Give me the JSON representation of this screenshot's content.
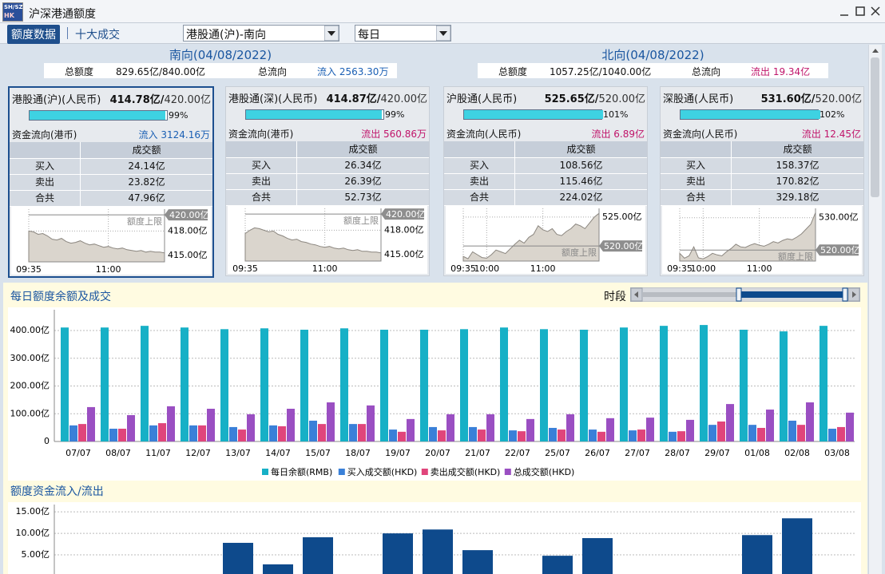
{
  "window": {
    "title": "沪深港通额度",
    "icon_top": "SH/SZ",
    "icon_bottom": "HK"
  },
  "tabs": [
    "额度数据",
    "十大成交"
  ],
  "selects": [
    "港股通(沪)-南向",
    "每日"
  ],
  "directions": [
    {
      "heading": "南向(04/08/2022)",
      "total_label": "总额度",
      "total": "829.65亿/840.00亿",
      "flow_label": "总流向",
      "flow": "流入 2563.30万",
      "flow_color": "#1a5fb4"
    },
    {
      "heading": "北向(04/08/2022)",
      "total_label": "总额度",
      "total": "1057.25亿/1040.00亿",
      "flow_label": "总流向",
      "flow": "流出 19.34亿",
      "flow_color": "#c0146a"
    }
  ],
  "cards": [
    {
      "name": "港股通(沪)(人民币)",
      "balance": "414.78亿/",
      "quota": "420.00亿",
      "pct": 99,
      "pct_label": "99%",
      "flow_label": "资金流向(港币)",
      "flow": "流入 3124.16万",
      "flow_color": "#1a5fb4",
      "col_header": "成交额",
      "rows": [
        [
          "买入",
          "24.14亿"
        ],
        [
          "卖出",
          "23.82亿"
        ],
        [
          "合共",
          "47.96亿"
        ]
      ],
      "chart": {
        "type": "area",
        "values": [
          418.0,
          417.9,
          417.6,
          417.7,
          417.4,
          417.0,
          416.9,
          417.1,
          416.7,
          416.5,
          416.6,
          416.8,
          416.5,
          416.3,
          416.4,
          416.2,
          416.0,
          416.1,
          415.9,
          415.8,
          415.9,
          415.7,
          415.6,
          415.5,
          415.6,
          415.4,
          415.5,
          415.4,
          415.4,
          415.3
        ],
        "ylim": [
          414.2,
          420.7
        ],
        "yticks": [
          {
            "value": 418,
            "label": "418.00亿"
          },
          {
            "value": 415,
            "label": "415.00亿"
          }
        ],
        "xticks": [
          {
            "value": 0,
            "label": "09:35"
          },
          {
            "value": 17,
            "label": "11:00"
          }
        ],
        "limit": {
          "value": 420,
          "label": "420.00亿"
        },
        "limit_text": "额度上限"
      }
    },
    {
      "name": "港股通(深)(人民币)",
      "balance": "414.87亿/",
      "quota": "420.00亿",
      "pct": 99,
      "pct_label": "99%",
      "flow_label": "资金流向(港币)",
      "flow": "流出 560.86万",
      "flow_color": "#c0146a",
      "col_header": "成交额",
      "rows": [
        [
          "买入",
          "26.34亿"
        ],
        [
          "卖出",
          "26.39亿"
        ],
        [
          "合共",
          "52.73亿"
        ]
      ],
      "chart": {
        "type": "area",
        "values": [
          417.6,
          418.0,
          418.3,
          418.2,
          418.0,
          417.8,
          417.9,
          417.5,
          417.3,
          417.0,
          416.8,
          416.9,
          416.6,
          416.5,
          416.3,
          416.2,
          416.0,
          415.9,
          416.0,
          415.8,
          415.7,
          415.8,
          415.6,
          415.5,
          415.6,
          415.4,
          415.4,
          415.3,
          415.3,
          415.2
        ],
        "ylim": [
          414.2,
          420.7
        ],
        "yticks": [
          {
            "value": 418,
            "label": "418.00亿"
          },
          {
            "value": 415,
            "label": "415.00亿"
          }
        ],
        "xticks": [
          {
            "value": 0,
            "label": "09:35"
          },
          {
            "value": 17,
            "label": "11:00"
          }
        ],
        "limit": {
          "value": 420,
          "label": "420.00亿"
        },
        "limit_text": "额度上限"
      }
    },
    {
      "name": "沪股通(人民币)",
      "balance": "525.65亿/",
      "quota": "520.00亿",
      "pct": 101,
      "pct_label": "101%",
      "flow_label": "资金流向(人民币)",
      "flow": "流出 6.89亿",
      "flow_color": "#c0146a",
      "col_header": "成交额",
      "rows": [
        [
          "买入",
          "108.56亿"
        ],
        [
          "卖出",
          "115.46亿"
        ],
        [
          "合共",
          "224.02亿"
        ]
      ],
      "chart": {
        "type": "area",
        "values": [
          518.2,
          517.8,
          519.0,
          518.5,
          518.0,
          517.9,
          518.5,
          519.3,
          519.0,
          518.7,
          519.5,
          520.3,
          521.0,
          520.5,
          521.5,
          522.0,
          523.5,
          522.8,
          522.5,
          523.0,
          522.0,
          521.8,
          522.5,
          523.0,
          523.8,
          523.5,
          523.0,
          524.0,
          525.0,
          525.65
        ],
        "ylim": [
          517.4,
          526.5
        ],
        "yticks": [
          {
            "value": 525,
            "label": "525.00亿"
          }
        ],
        "xticks": [
          {
            "value": 0,
            "label": "09:35"
          },
          {
            "value": 5,
            "label": "10:00"
          },
          {
            "value": 17,
            "label": "11:00"
          }
        ],
        "limit": {
          "value": 520,
          "label": "520.00亿"
        },
        "limit_text": "额度上限"
      }
    },
    {
      "name": "深股通(人民币)",
      "balance": "531.60亿/",
      "quota": "520.00亿",
      "pct": 102,
      "pct_label": "102%",
      "flow_label": "资金流向(人民币)",
      "flow": "流出 12.45亿",
      "flow_color": "#c0146a",
      "col_header": "成交额",
      "rows": [
        [
          "买入",
          "158.37亿"
        ],
        [
          "卖出",
          "170.82亿"
        ],
        [
          "合共",
          "329.18亿"
        ]
      ],
      "chart": {
        "type": "area",
        "values": [
          519.0,
          517.5,
          518.2,
          521.0,
          517.6,
          517.3,
          518.0,
          519.0,
          518.5,
          518.2,
          519.5,
          520.5,
          521.8,
          521.0,
          520.8,
          521.5,
          522.0,
          521.5,
          521.2,
          521.8,
          522.6,
          522.2,
          523.0,
          523.5,
          523.2,
          524.0,
          525.0,
          526.5,
          528.0,
          531.6
        ],
        "ylim": [
          516.6,
          532.9
        ],
        "yticks": [
          {
            "value": 530,
            "label": "530.00亿"
          }
        ],
        "xticks": [
          {
            "value": 0,
            "label": "09:35"
          },
          {
            "value": 5,
            "label": "10:00"
          },
          {
            "value": 17,
            "label": "11:00"
          }
        ],
        "limit": {
          "value": 520,
          "label": "520.00亿"
        },
        "limit_text": "额度上限"
      }
    }
  ],
  "sections": [
    {
      "title": "每日额度余额及成交",
      "range_label": "时段"
    },
    {
      "title": "额度资金流入/流出"
    }
  ],
  "daily_chart": {
    "type": "bar",
    "categories": [
      "07/07",
      "08/07",
      "11/07",
      "12/07",
      "13/07",
      "14/07",
      "15/07",
      "18/07",
      "19/07",
      "20/07",
      "21/07",
      "22/07",
      "25/07",
      "26/07",
      "27/07",
      "28/07",
      "29/07",
      "01/08",
      "02/08",
      "03/08"
    ],
    "series": [
      {
        "name": "每日余额(RMB)",
        "color": "#17b0c6",
        "values": [
          411,
          411,
          417,
          411,
          405,
          408,
          403,
          408,
          403,
          403,
          405,
          411,
          405,
          403,
          411,
          417,
          420,
          403,
          397,
          417
        ]
      },
      {
        "name": "买入成交额(HKD)",
        "color": "#3a80d8",
        "values": [
          58,
          46,
          58,
          58,
          52,
          58,
          75,
          63,
          43,
          52,
          52,
          40,
          49,
          43,
          40,
          35,
          60,
          60,
          75,
          46
        ]
      },
      {
        "name": "卖出成交额(HKD)",
        "color": "#e0457b",
        "values": [
          63,
          46,
          66,
          58,
          43,
          55,
          63,
          63,
          35,
          40,
          43,
          37,
          43,
          35,
          43,
          37,
          72,
          49,
          60,
          52
        ]
      },
      {
        "name": "总成交额(HKD)",
        "color": "#9a4fc2",
        "values": [
          124,
          95,
          127,
          118,
          98,
          118,
          141,
          130,
          81,
          98,
          98,
          81,
          98,
          84,
          86,
          78,
          135,
          115,
          141,
          104
        ]
      }
    ],
    "ylim": [
      0,
      475
    ],
    "yticks": [
      0,
      {
        "value": 100,
        "label": "100.00亿"
      },
      {
        "value": 200,
        "label": "200.00亿"
      },
      {
        "value": 300,
        "label": "300.00亿"
      },
      {
        "value": 400,
        "label": "400.00亿"
      }
    ],
    "grid": true
  },
  "flow_chart": {
    "type": "bar",
    "color": "#0e4a8c",
    "values": [
      0,
      0,
      0,
      0,
      7.8,
      2.8,
      9.1,
      0,
      10.0,
      10.9,
      6.1,
      0,
      4.8,
      8.9,
      0,
      0,
      0,
      9.6,
      13.5,
      0
    ],
    "ylim": [
      0,
      16.7
    ],
    "yticks": [
      {
        "value": 5,
        "label": "5.00亿"
      },
      {
        "value": 10,
        "label": "10.00亿"
      },
      {
        "value": 15,
        "label": "15.00亿"
      }
    ],
    "grid": true
  }
}
